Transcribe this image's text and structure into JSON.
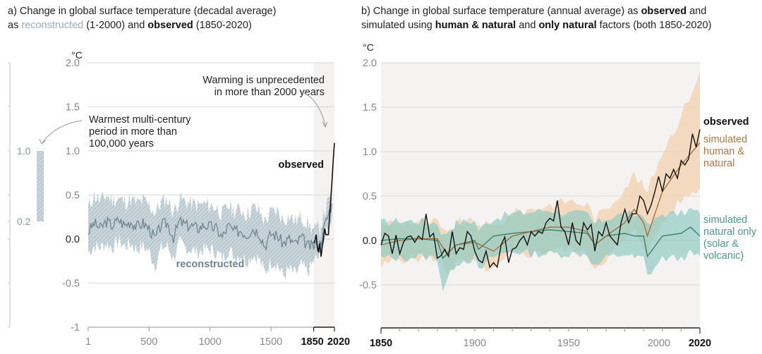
{
  "panel_a": {
    "title_line1": "a) Change in global surface temperature (decadal average)",
    "title_line2_prefix": "as ",
    "title_reconstructed": "reconstructed",
    "title_mid": " (1-2000) and ",
    "title_observed": "observed",
    "title_suffix": " (1850-2020)",
    "unit": "°C",
    "annotation_warming_1": "Warming is unprecedented",
    "annotation_warming_2": "in more than 2000 years",
    "annotation_warmest_1": "Warmest multi-century",
    "annotation_warmest_2": "period in more than",
    "annotation_warmest_3": "100,000 years",
    "label_observed": "observed",
    "label_reconstructed": "reconstructed",
    "side_bar_labels": [
      "1.0",
      "0.2"
    ]
  },
  "panel_b": {
    "title_line1_prefix": "b) Change in global surface temperature (annual average) as ",
    "title_observed": "observed",
    "title_line1_suffix": " and",
    "title_line2_prefix": "simulated using ",
    "title_human": "human & natural",
    "title_mid": " and ",
    "title_natural": "only natural",
    "title_suffix": " factors (both 1850-2020)",
    "unit": "°C",
    "legend_observed": "observed",
    "legend_human": [
      "simulated",
      "human &",
      "natural"
    ],
    "legend_natural": [
      "simulated",
      "natural only",
      "(solar &",
      "volcanic)"
    ]
  },
  "colors": {
    "observed": "#111111",
    "reconstructed_line": "#6f8690",
    "reconstructed_band": "#b8c8d0",
    "human_line": "#9a6a3a",
    "human_band": "#f2d3b5",
    "natural_line": "#2f7a68",
    "natural_band": "#8fcac2",
    "grid": "#dddddd",
    "highlight_bg": "#f4f3f1",
    "tick_text": "#8a8a8a"
  },
  "chart_data": [
    {
      "type": "line",
      "title": "a) Change in global surface temperature (decadal average) as reconstructed (1-2000) and observed (1850-2020)",
      "ylabel": "°C",
      "xlabel": "",
      "ylim": [
        -1,
        2
      ],
      "xlim": [
        1,
        2020
      ],
      "yticks": [
        "2.0",
        "1.5",
        "1.0",
        "0.5",
        "0.0",
        "-0.5",
        "-1"
      ],
      "ytick_values": [
        2.0,
        1.5,
        1.0,
        0.5,
        0.0,
        -0.5,
        -1
      ],
      "xticks": [
        "1",
        "500",
        "1000",
        "1500",
        "1850",
        "2020"
      ],
      "xtick_values": [
        1,
        500,
        1000,
        1500,
        1850,
        2020
      ],
      "grid": true,
      "highlight_range": [
        1850,
        2020
      ],
      "side_bar": {
        "label": "Warmest multi-century period in more than 100,000 years",
        "range": [
          0.2,
          1.0
        ]
      },
      "series": [
        {
          "name": "reconstructed",
          "x": [
            1,
            50,
            100,
            150,
            200,
            250,
            300,
            350,
            400,
            450,
            500,
            550,
            600,
            650,
            700,
            750,
            800,
            850,
            900,
            950,
            1000,
            1050,
            1100,
            1150,
            1200,
            1250,
            1300,
            1350,
            1400,
            1450,
            1500,
            1550,
            1600,
            1650,
            1700,
            1750,
            1800,
            1850,
            1900,
            1950,
            2000
          ],
          "values": [
            0.08,
            0.18,
            0.12,
            0.2,
            0.15,
            0.22,
            0.16,
            0.2,
            0.14,
            0.18,
            0.12,
            0.0,
            0.16,
            0.18,
            0.02,
            0.2,
            0.16,
            0.15,
            0.12,
            0.16,
            0.14,
            0.12,
            0.02,
            0.15,
            0.08,
            0.1,
            0.05,
            0.12,
            0.08,
            -0.08,
            0.06,
            0.04,
            -0.05,
            0.0,
            -0.06,
            0.02,
            -0.08,
            -0.08,
            -0.05,
            0.2,
            0.4
          ],
          "lower": [
            -0.15,
            -0.08,
            -0.1,
            -0.05,
            -0.1,
            -0.02,
            -0.08,
            -0.05,
            -0.12,
            -0.08,
            -0.14,
            -0.3,
            -0.1,
            -0.08,
            -0.22,
            -0.05,
            -0.1,
            -0.12,
            -0.15,
            -0.12,
            -0.12,
            -0.15,
            -0.22,
            -0.12,
            -0.2,
            -0.18,
            -0.25,
            -0.18,
            -0.22,
            -0.38,
            -0.25,
            -0.28,
            -0.42,
            -0.35,
            -0.4,
            -0.3,
            -0.38,
            -0.25,
            -0.2,
            0.05,
            0.25
          ],
          "upper": [
            0.35,
            0.5,
            0.42,
            0.5,
            0.44,
            0.46,
            0.42,
            0.45,
            0.4,
            0.44,
            0.38,
            0.3,
            0.42,
            0.45,
            0.3,
            0.46,
            0.42,
            0.4,
            0.38,
            0.4,
            0.38,
            0.36,
            0.28,
            0.38,
            0.32,
            0.34,
            0.28,
            0.36,
            0.32,
            0.2,
            0.3,
            0.32,
            0.22,
            0.26,
            0.2,
            0.25,
            0.18,
            0.1,
            0.12,
            0.35,
            0.5
          ]
        },
        {
          "name": "observed",
          "x": [
            1850,
            1860,
            1870,
            1880,
            1890,
            1900,
            1910,
            1920,
            1930,
            1940,
            1950,
            1960,
            1970,
            1980,
            1990,
            2000,
            2010,
            2020
          ],
          "values": [
            -0.05,
            -0.02,
            0.05,
            -0.08,
            -0.15,
            -0.05,
            -0.2,
            -0.08,
            0.0,
            0.12,
            0.05,
            0.05,
            0.05,
            0.25,
            0.45,
            0.65,
            0.9,
            1.09
          ]
        }
      ]
    },
    {
      "type": "line",
      "title": "b) Change in global surface temperature (annual average) as observed and simulated using human & natural and only natural factors (both 1850-2020)",
      "ylabel": "°C",
      "xlabel": "",
      "ylim": [
        -1,
        2
      ],
      "xlim": [
        1850,
        2020
      ],
      "yticks": [
        "2.0",
        "1.5",
        "1.0",
        "0.5",
        "0.0",
        "-0.5"
      ],
      "ytick_values": [
        2.0,
        1.5,
        1.0,
        0.5,
        0.0,
        -0.5
      ],
      "xticks": [
        "1850",
        "1900",
        "1950",
        "2000",
        "2020"
      ],
      "xtick_values": [
        1850,
        1900,
        1950,
        2000,
        2020
      ],
      "grid": true,
      "legend_position": "right",
      "series": [
        {
          "name": "observed",
          "x": [
            1850,
            1852,
            1854,
            1856,
            1858,
            1860,
            1862,
            1864,
            1866,
            1868,
            1870,
            1872,
            1874,
            1876,
            1878,
            1880,
            1882,
            1884,
            1886,
            1888,
            1890,
            1892,
            1894,
            1896,
            1898,
            1900,
            1902,
            1904,
            1906,
            1908,
            1910,
            1912,
            1914,
            1916,
            1918,
            1920,
            1922,
            1924,
            1926,
            1928,
            1930,
            1932,
            1934,
            1936,
            1938,
            1940,
            1942,
            1944,
            1946,
            1948,
            1950,
            1952,
            1954,
            1956,
            1958,
            1960,
            1962,
            1964,
            1966,
            1968,
            1970,
            1972,
            1974,
            1976,
            1978,
            1980,
            1982,
            1984,
            1986,
            1988,
            1990,
            1992,
            1994,
            1996,
            1998,
            2000,
            2002,
            2004,
            2006,
            2008,
            2010,
            2012,
            2014,
            2016,
            2018,
            2020
          ],
          "values": [
            -0.05,
            0.08,
            0.05,
            -0.15,
            0.06,
            -0.15,
            -0.02,
            0.04,
            0.05,
            -0.02,
            0.05,
            0.01,
            0.3,
            0.04,
            0.08,
            -0.2,
            -0.17,
            -0.1,
            -0.18,
            0.1,
            -0.15,
            -0.08,
            -0.1,
            0.1,
            0.05,
            -0.12,
            -0.22,
            -0.25,
            -0.12,
            -0.3,
            -0.25,
            -0.3,
            -0.05,
            0.04,
            -0.25,
            -0.1,
            -0.08,
            0.0,
            0.05,
            -0.05,
            0.1,
            0.05,
            0.1,
            0.08,
            0.2,
            0.25,
            0.22,
            0.45,
            0.15,
            0.1,
            -0.05,
            0.2,
            0.0,
            -0.05,
            0.2,
            0.12,
            0.18,
            -0.12,
            0.1,
            0.05,
            0.2,
            0.05,
            0.0,
            -0.05,
            0.2,
            0.35,
            0.2,
            0.3,
            0.3,
            0.5,
            0.45,
            0.3,
            0.4,
            0.55,
            0.72,
            0.55,
            0.75,
            0.7,
            0.8,
            0.7,
            0.9,
            0.85,
            0.92,
            1.2,
            1.05,
            1.25
          ]
        },
        {
          "name": "simulated human & natural",
          "x": [
            1850,
            1860,
            1870,
            1880,
            1885,
            1890,
            1900,
            1910,
            1920,
            1930,
            1940,
            1950,
            1960,
            1964,
            1970,
            1980,
            1985,
            1990,
            1992,
            2000,
            2010,
            2020
          ],
          "values": [
            -0.05,
            0.0,
            0.02,
            0.02,
            -0.15,
            -0.05,
            -0.02,
            -0.12,
            0.05,
            0.1,
            0.15,
            0.15,
            0.1,
            -0.05,
            0.05,
            0.2,
            0.35,
            0.2,
            0.05,
            0.55,
            0.85,
            1.1
          ],
          "lower": [
            -0.3,
            -0.2,
            -0.2,
            -0.2,
            -0.35,
            -0.25,
            -0.25,
            -0.35,
            -0.15,
            -0.15,
            -0.1,
            -0.1,
            -0.15,
            -0.3,
            -0.2,
            0.0,
            0.1,
            -0.05,
            -0.15,
            0.2,
            0.45,
            0.6
          ],
          "upper": [
            0.2,
            0.2,
            0.22,
            0.2,
            0.05,
            0.2,
            0.2,
            0.15,
            0.3,
            0.35,
            0.4,
            0.45,
            0.4,
            0.25,
            0.35,
            0.6,
            0.75,
            0.6,
            0.55,
            1.0,
            1.4,
            1.9
          ]
        },
        {
          "name": "simulated natural only (solar & volcanic)",
          "x": [
            1850,
            1860,
            1870,
            1880,
            1883,
            1890,
            1900,
            1902,
            1910,
            1920,
            1930,
            1940,
            1950,
            1960,
            1964,
            1970,
            1980,
            1985,
            1990,
            1992,
            2000,
            2010,
            2015,
            2020
          ],
          "values": [
            0.0,
            0.02,
            0.02,
            0.0,
            -0.2,
            -0.05,
            0.0,
            -0.1,
            0.05,
            0.08,
            0.1,
            0.12,
            0.1,
            0.08,
            -0.05,
            0.05,
            0.08,
            0.05,
            0.05,
            -0.18,
            0.05,
            0.08,
            0.15,
            0.05
          ],
          "lower": [
            -0.2,
            -0.2,
            -0.18,
            -0.2,
            -0.55,
            -0.25,
            -0.2,
            -0.35,
            -0.18,
            -0.12,
            -0.15,
            -0.15,
            -0.15,
            -0.15,
            -0.3,
            -0.2,
            -0.15,
            -0.2,
            -0.2,
            -0.4,
            -0.2,
            -0.2,
            -0.15,
            -0.18
          ],
          "upper": [
            0.2,
            0.22,
            0.22,
            0.2,
            0.05,
            0.2,
            0.22,
            0.12,
            0.25,
            0.3,
            0.32,
            0.35,
            0.3,
            0.3,
            0.18,
            0.25,
            0.3,
            0.28,
            0.3,
            0.15,
            0.3,
            0.3,
            0.35,
            0.3
          ]
        }
      ]
    }
  ]
}
